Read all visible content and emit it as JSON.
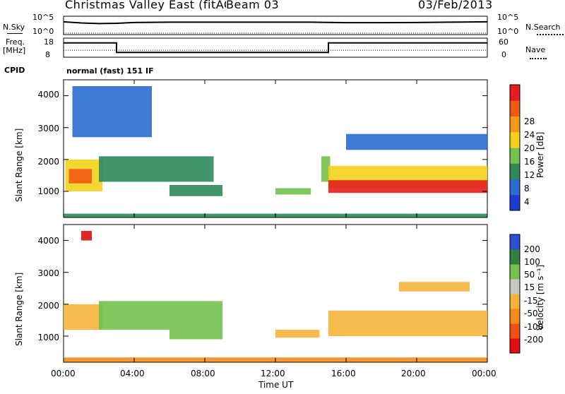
{
  "header": {
    "title": "Christmas Valley East (fitACF)",
    "beam": "Beam 03",
    "date": "03/Feb/2013"
  },
  "status": {
    "nsky_label": "N.Sky",
    "nsearch_label": "N.Search",
    "freq_label": "Freq.",
    "freq_unit": "[MHz]",
    "nave_label": "Nave",
    "cpid_label": "CPID",
    "cpid_value": "normal (fast) 151 IF",
    "noise_ticks": [
      "10^5",
      "10^0"
    ],
    "freq_ticks": [
      "18",
      "8"
    ],
    "nave_ticks": [
      "60",
      "0"
    ]
  },
  "time_axis": {
    "label": "Time UT",
    "ticks": [
      "00:00",
      "04:00",
      "08:00",
      "12:00",
      "16:00",
      "20:00",
      "00:00"
    ]
  },
  "panels": {
    "y_label": "Slant Range [km]",
    "y_ticks": [
      "4000",
      "3000",
      "2000",
      "1000"
    ]
  },
  "colorbars": {
    "power_label": "Power [dB]",
    "power_ticks": [
      "28",
      "24",
      "20",
      "16",
      "12",
      "8",
      "4"
    ],
    "velocity_label": "Velocity [m s⁻¹]",
    "velocity_ticks": [
      "200",
      "100",
      "50",
      "15",
      "-15",
      "-50",
      "-100",
      "-200"
    ]
  },
  "chart_data": [
    {
      "type": "line",
      "name_ref": "N.Sky / N.Search",
      "x_range_hours": [
        0,
        24
      ],
      "y_scale": "log",
      "ylim": [
        1,
        100000
      ],
      "series": [
        {
          "name": "N.Sky",
          "style": "solid",
          "x": [
            0,
            1,
            2,
            3,
            4,
            6,
            8,
            10,
            12,
            14,
            16,
            18,
            20,
            22,
            24
          ],
          "y": [
            3000,
            1500,
            1000,
            1200,
            2000,
            2500,
            2500,
            2500,
            2500,
            2500,
            1800,
            1800,
            2000,
            2500,
            3000
          ]
        },
        {
          "name": "N.Search",
          "style": "dotted"
        }
      ]
    },
    {
      "type": "line",
      "name_ref": "Freq. / Nave",
      "x_range_hours": [
        0,
        24
      ],
      "series": [
        {
          "name": "Freq.",
          "unit": "MHz",
          "ylim": [
            8,
            18
          ],
          "x": [
            0,
            3,
            3,
            15,
            15,
            24
          ],
          "y": [
            15.5,
            15.5,
            10.5,
            10.5,
            15.5,
            15.5
          ]
        },
        {
          "name": "Nave",
          "style": "dotted",
          "ylim": [
            0,
            60
          ],
          "x": [
            0,
            24
          ],
          "y": [
            22,
            22
          ]
        }
      ]
    },
    {
      "type": "heatmap",
      "name_ref": "Power",
      "x_range_hours": [
        0,
        24
      ],
      "ylim": [
        180,
        4500
      ],
      "y_ticks": [
        1000,
        2000,
        3000,
        4000
      ],
      "color_levels": [
        0,
        4,
        8,
        12,
        16,
        20,
        24,
        28
      ],
      "colors": [
        "#1f3bd6",
        "#2a6ccf",
        "#2e8b57",
        "#74c14b",
        "#f2d21a",
        "#f59a18",
        "#ef5a12",
        "#e41e1e"
      ],
      "regions": [
        {
          "x0": 0.0,
          "x1": 24.0,
          "y0": 190,
          "y1": 300,
          "level": 8
        },
        {
          "x0": 0.1,
          "x1": 2.2,
          "y0": 1000,
          "y1": 2000,
          "level": 18
        },
        {
          "x0": 0.3,
          "x1": 1.6,
          "y0": 1250,
          "y1": 1700,
          "level": 24
        },
        {
          "x0": 2.0,
          "x1": 8.5,
          "y0": 1300,
          "y1": 2100,
          "level": 10
        },
        {
          "x0": 6.0,
          "x1": 9.0,
          "y0": 850,
          "y1": 1200,
          "level": 10
        },
        {
          "x0": 0.5,
          "x1": 5.0,
          "y0": 2700,
          "y1": 4300,
          "level": 6
        },
        {
          "x0": 12.0,
          "x1": 14.0,
          "y0": 900,
          "y1": 1100,
          "level": 14
        },
        {
          "x0": 14.6,
          "x1": 15.1,
          "y0": 1300,
          "y1": 2100,
          "level": 12
        },
        {
          "x0": 15.0,
          "x1": 24.0,
          "y0": 1100,
          "y1": 1800,
          "level": 18
        },
        {
          "x0": 15.0,
          "x1": 24.0,
          "y0": 950,
          "y1": 1350,
          "level": 28
        },
        {
          "x0": 16.0,
          "x1": 24.0,
          "y0": 2300,
          "y1": 2800,
          "level": 6
        }
      ]
    },
    {
      "type": "heatmap",
      "name_ref": "Velocity",
      "x_range_hours": [
        0,
        24
      ],
      "ylim": [
        180,
        4500
      ],
      "y_ticks": [
        1000,
        2000,
        3000,
        4000
      ],
      "color_levels": [
        -200,
        -100,
        -50,
        -15,
        15,
        50,
        100,
        200
      ],
      "colors": [
        "#e01010",
        "#f05014",
        "#f38b1a",
        "#f5b23a",
        "#c8c8c0",
        "#74c14b",
        "#2f7f3f",
        "#2a4fcf"
      ],
      "regions": [
        {
          "x0": 0.0,
          "x1": 24.0,
          "y0": 190,
          "y1": 330,
          "level": -50
        },
        {
          "x0": 0.0,
          "x1": 2.2,
          "y0": 1200,
          "y1": 2000,
          "level": 0
        },
        {
          "x0": 2.0,
          "x1": 9.0,
          "y0": 1200,
          "y1": 2100,
          "level": 60
        },
        {
          "x0": 6.0,
          "x1": 9.0,
          "y0": 900,
          "y1": 1200,
          "level": 60
        },
        {
          "x0": 12.0,
          "x1": 14.5,
          "y0": 950,
          "y1": 1200,
          "level": 0
        },
        {
          "x0": 15.0,
          "x1": 24.0,
          "y0": 1000,
          "y1": 1800,
          "level": 0
        },
        {
          "x0": 1.0,
          "x1": 1.6,
          "y0": 4000,
          "y1": 4300,
          "level": -200
        },
        {
          "x0": 19.0,
          "x1": 23.0,
          "y0": 2400,
          "y1": 2700,
          "level": 0
        }
      ]
    }
  ]
}
